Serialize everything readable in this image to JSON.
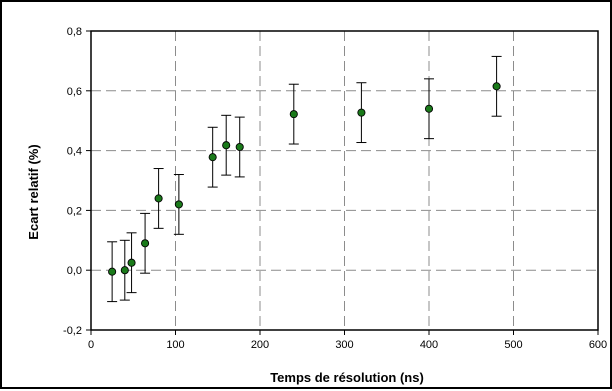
{
  "chart_data": {
    "type": "scatter",
    "xlabel": "Temps de résolution (ns)",
    "ylabel": "Ecart relatif (%)",
    "xlim": [
      0,
      600
    ],
    "ylim": [
      -0.2,
      0.8
    ],
    "xticks": [
      0,
      100,
      200,
      300,
      400,
      500,
      600
    ],
    "xtick_labels": [
      "0",
      "100",
      "200",
      "300",
      "400",
      "500",
      "600"
    ],
    "yticks": [
      -0.2,
      0,
      0.2,
      0.4,
      0.6,
      0.8
    ],
    "ytick_labels": [
      "-0,2",
      "0,0",
      "0,2",
      "0,4",
      "0,6",
      "0,8"
    ],
    "grid": true,
    "grid_style": "dashed",
    "marker_color": "#1a7a1a",
    "points": [
      {
        "x": 25,
        "y": -0.005,
        "err": 0.1
      },
      {
        "x": 40,
        "y": 0.0,
        "err": 0.1
      },
      {
        "x": 48,
        "y": 0.025,
        "err": 0.1
      },
      {
        "x": 64,
        "y": 0.09,
        "err": 0.1
      },
      {
        "x": 80,
        "y": 0.24,
        "err": 0.1
      },
      {
        "x": 104,
        "y": 0.22,
        "err": 0.1
      },
      {
        "x": 144,
        "y": 0.378,
        "err": 0.1
      },
      {
        "x": 160,
        "y": 0.418,
        "err": 0.1
      },
      {
        "x": 176,
        "y": 0.412,
        "err": 0.1
      },
      {
        "x": 240,
        "y": 0.522,
        "err": 0.1
      },
      {
        "x": 320,
        "y": 0.527,
        "err": 0.1
      },
      {
        "x": 400,
        "y": 0.54,
        "err": 0.1
      },
      {
        "x": 480,
        "y": 0.615,
        "err": 0.1
      }
    ]
  }
}
